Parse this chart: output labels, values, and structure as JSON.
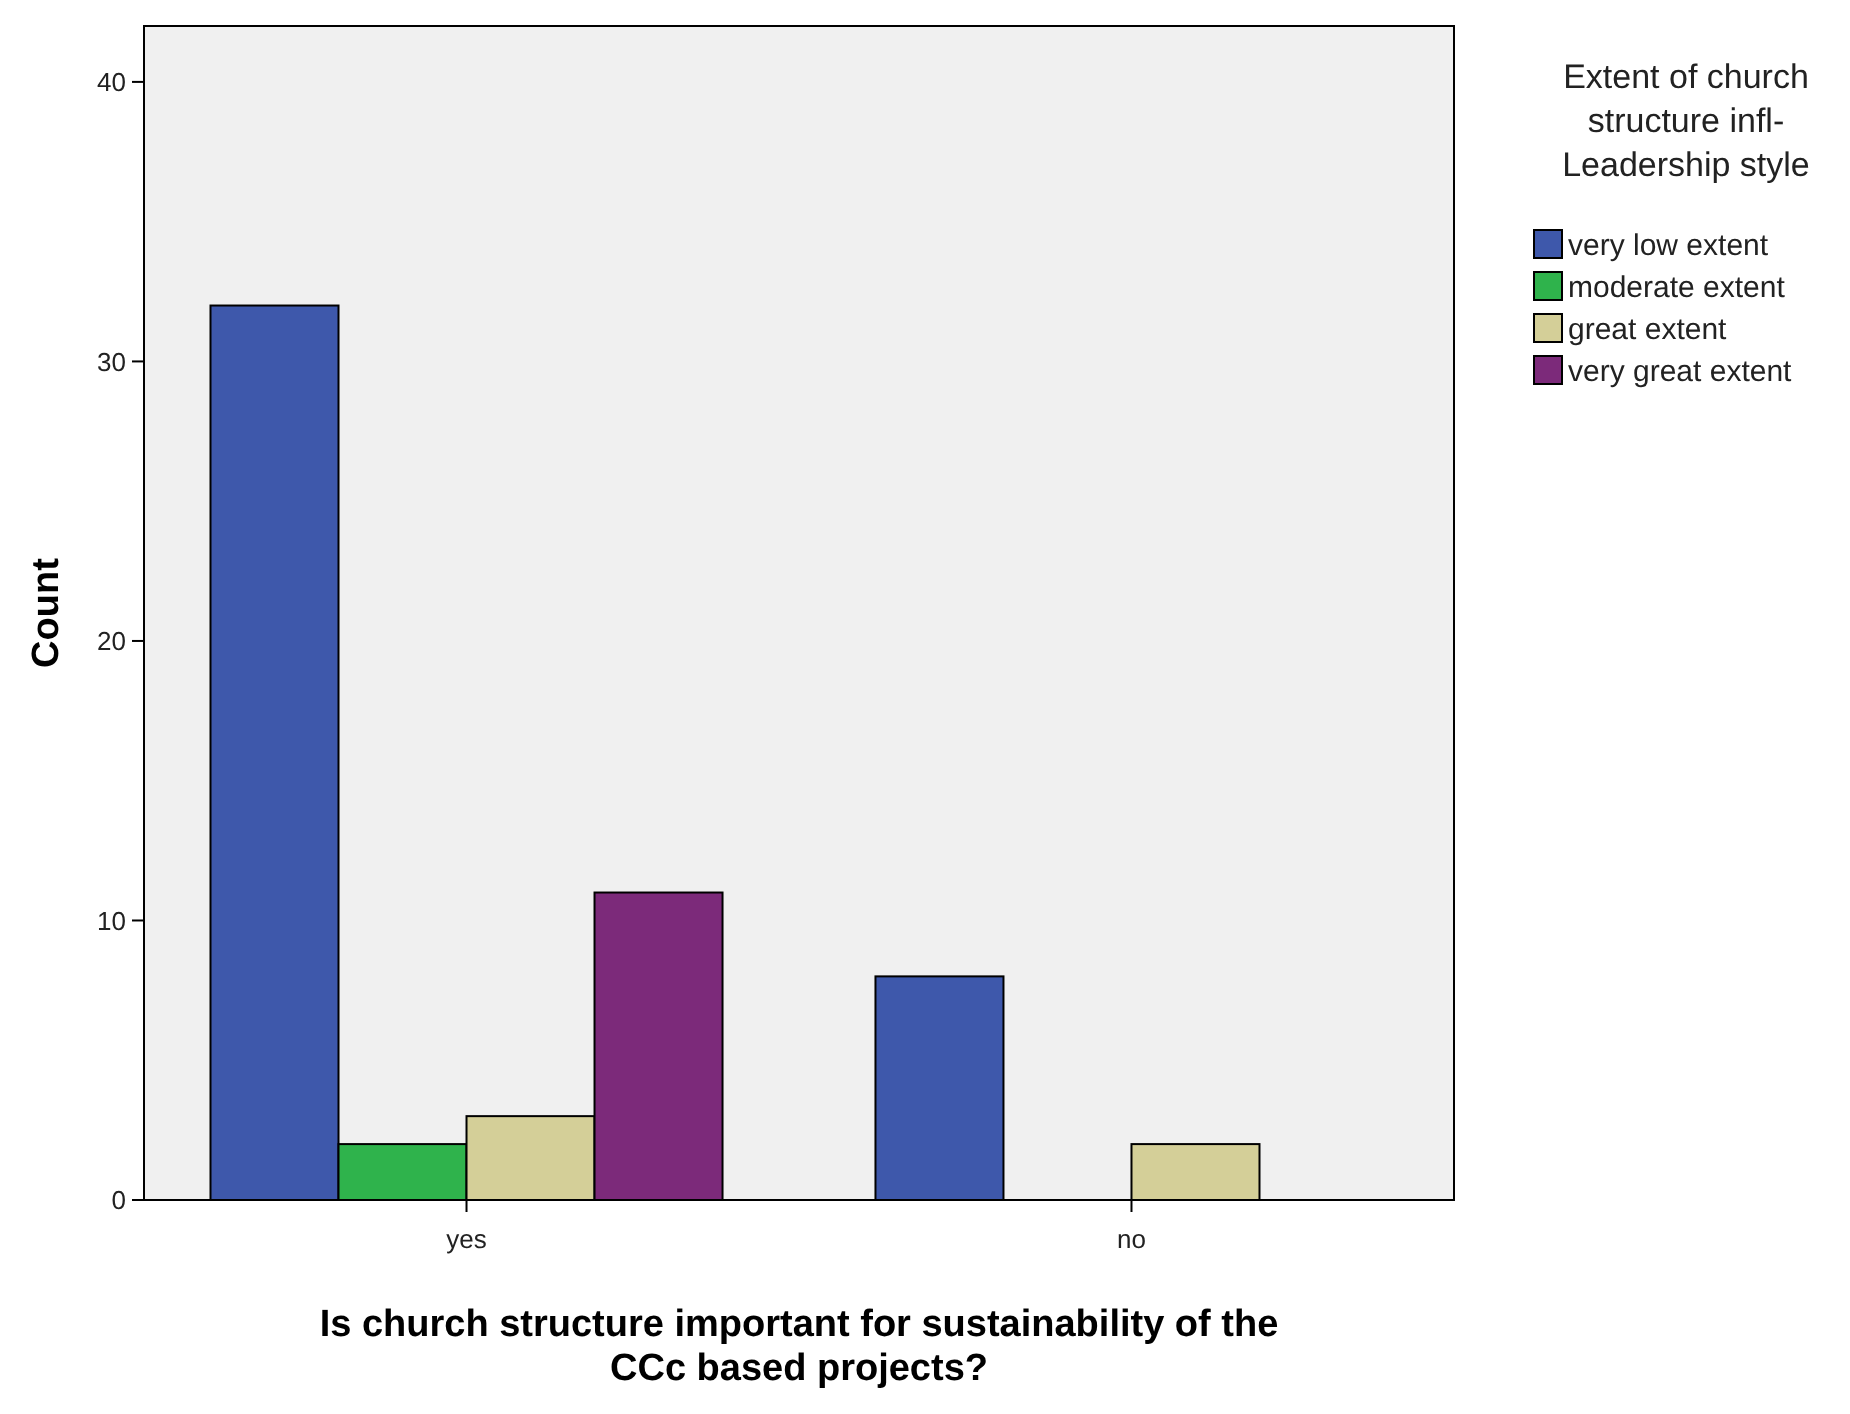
{
  "chart_data": {
    "type": "bar",
    "xlabel": "Is church structure important for sustainability of the\nCCc based projects?",
    "ylabel": "Count",
    "legend_title": "Extent of church\nstructure infl-\nLeadership style",
    "categories": [
      "yes",
      "no"
    ],
    "series": [
      {
        "name": "very low extent",
        "color": "#3e58ab",
        "values": [
          32,
          8
        ]
      },
      {
        "name": "moderate extent",
        "color": "#2fb34c",
        "values": [
          2,
          0
        ]
      },
      {
        "name": "great extent",
        "color": "#d4cf98",
        "values": [
          3,
          2
        ]
      },
      {
        "name": "very great extent",
        "color": "#7c2a7a",
        "values": [
          11,
          0
        ]
      }
    ],
    "ylim": [
      0,
      42
    ],
    "yticks": [
      0,
      10,
      20,
      30,
      40
    ],
    "grid": false,
    "legend": "right"
  }
}
